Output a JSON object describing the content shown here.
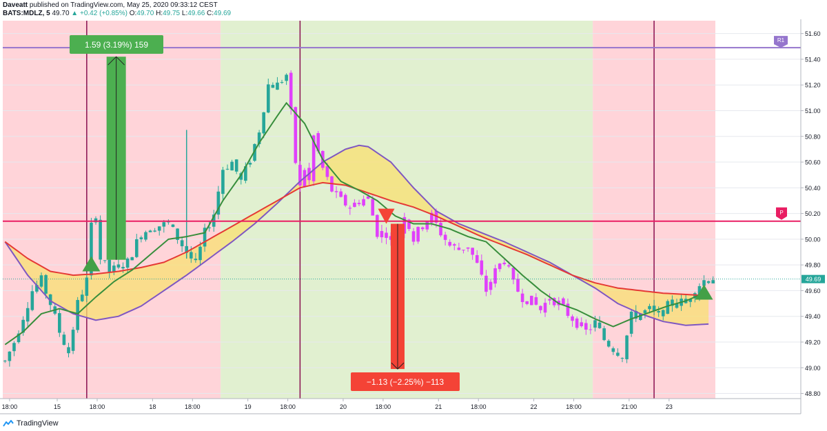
{
  "header": {
    "author": "Daveatt",
    "published": "published on TradingView.com, May 25, 2020 09:33:12 CEST",
    "symbol": "BATS:MDLZ, 5",
    "last": "49.70",
    "change": "+0.42 (+0.85%)",
    "o_label": "O:",
    "o": "49.70",
    "h_label": "H:",
    "h": "49.75",
    "l_label": "L:",
    "l": "49.66",
    "c_label": "C:",
    "c": "49.69",
    "up_arrow": "▲"
  },
  "footer": {
    "brand": "TradingView"
  },
  "colors": {
    "bull": "#26a69a",
    "bear": "#ef5350",
    "magenta": "#e040fb",
    "green_bg": "#dcedc8",
    "red_bg": "#ffcdd2",
    "ma_green": "#388e3c",
    "ma_red": "#e53935",
    "ma_purple": "#7e57c2",
    "fill_yellow": "#f8e071",
    "pivot": "#e91e63",
    "r1": "#9575cd",
    "long_box": "#4caf50",
    "short_box": "#f44336"
  },
  "chart_data": {
    "type": "candlestick",
    "y_ticks": [
      "51.60",
      "51.40",
      "51.20",
      "51.00",
      "50.80",
      "50.60",
      "50.40",
      "50.20",
      "50.00",
      "49.80",
      "49.60",
      "49.40",
      "49.20",
      "49.00",
      "48.80"
    ],
    "ylim": [
      48.76,
      51.7
    ],
    "x_ticks": [
      "18:00",
      "15",
      "18:00",
      "18",
      "18:00",
      "19",
      "18:00",
      "20",
      "18:00",
      "21",
      "18:00",
      "22",
      "18:00",
      "21:00",
      "23"
    ],
    "sessions": [
      {
        "from": 0,
        "to": 48,
        "type": "bear"
      },
      {
        "from": 48,
        "to": 130,
        "type": "bull"
      },
      {
        "from": 130,
        "to": 157,
        "type": "bear"
      }
    ],
    "session_lines": [
      18,
      65,
      143
    ],
    "last_price": 49.69,
    "last_price_label": "49.69",
    "pivot": {
      "label": "P",
      "value": 50.14
    },
    "r1": {
      "label": "R1",
      "value": 51.49
    },
    "long_position": {
      "label": "1.59 (3.19%) 159",
      "from": 49.84,
      "to": 51.42
    },
    "short_position": {
      "label": "−1.13 (−2.25%) −113",
      "from": 50.12,
      "to": 48.99
    },
    "signals": [
      {
        "type": "buy",
        "x": 19,
        "price": 49.75
      },
      {
        "type": "sell",
        "x": 84,
        "price": 50.13
      },
      {
        "type": "buy",
        "x": 154,
        "price": 49.53
      }
    ],
    "ma_fast": [
      [
        0,
        49.18
      ],
      [
        4,
        49.28
      ],
      [
        8,
        49.42
      ],
      [
        12,
        49.46
      ],
      [
        16,
        49.42
      ],
      [
        20,
        49.55
      ],
      [
        24,
        49.67
      ],
      [
        28,
        49.76
      ],
      [
        32,
        49.88
      ],
      [
        36,
        50.0
      ],
      [
        40,
        50.02
      ],
      [
        44,
        50.05
      ],
      [
        48,
        50.3
      ],
      [
        52,
        50.5
      ],
      [
        56,
        50.75
      ],
      [
        60,
        50.96
      ],
      [
        62,
        51.06
      ],
      [
        66,
        50.9
      ],
      [
        70,
        50.62
      ],
      [
        74,
        50.45
      ],
      [
        78,
        50.38
      ],
      [
        82,
        50.3
      ],
      [
        86,
        50.18
      ],
      [
        90,
        50.12
      ],
      [
        94,
        50.12
      ],
      [
        98,
        50.08
      ],
      [
        102,
        50.02
      ],
      [
        106,
        49.98
      ],
      [
        110,
        49.85
      ],
      [
        114,
        49.72
      ],
      [
        118,
        49.6
      ],
      [
        122,
        49.5
      ],
      [
        126,
        49.45
      ],
      [
        130,
        49.38
      ],
      [
        134,
        49.32
      ],
      [
        138,
        49.38
      ],
      [
        142,
        49.43
      ],
      [
        146,
        49.48
      ],
      [
        150,
        49.52
      ],
      [
        154,
        49.58
      ]
    ],
    "ma_mid": [
      [
        0,
        49.98
      ],
      [
        5,
        49.85
      ],
      [
        10,
        49.75
      ],
      [
        15,
        49.72
      ],
      [
        20,
        49.73
      ],
      [
        25,
        49.75
      ],
      [
        30,
        49.78
      ],
      [
        35,
        49.82
      ],
      [
        40,
        49.9
      ],
      [
        45,
        50.0
      ],
      [
        50,
        50.1
      ],
      [
        55,
        50.2
      ],
      [
        60,
        50.3
      ],
      [
        65,
        50.4
      ],
      [
        70,
        50.44
      ],
      [
        75,
        50.42
      ],
      [
        80,
        50.36
      ],
      [
        85,
        50.3
      ],
      [
        90,
        50.25
      ],
      [
        95,
        50.18
      ],
      [
        100,
        50.1
      ],
      [
        105,
        50.02
      ],
      [
        110,
        49.95
      ],
      [
        115,
        49.88
      ],
      [
        120,
        49.8
      ],
      [
        125,
        49.72
      ],
      [
        130,
        49.66
      ],
      [
        135,
        49.62
      ],
      [
        140,
        49.6
      ],
      [
        145,
        49.58
      ],
      [
        150,
        49.57
      ],
      [
        155,
        49.56
      ]
    ],
    "ma_slow": [
      [
        0,
        49.98
      ],
      [
        5,
        49.72
      ],
      [
        10,
        49.52
      ],
      [
        15,
        49.42
      ],
      [
        20,
        49.37
      ],
      [
        25,
        49.4
      ],
      [
        30,
        49.48
      ],
      [
        35,
        49.6
      ],
      [
        40,
        49.72
      ],
      [
        45,
        49.85
      ],
      [
        50,
        49.98
      ],
      [
        55,
        50.12
      ],
      [
        60,
        50.28
      ],
      [
        65,
        50.45
      ],
      [
        70,
        50.6
      ],
      [
        75,
        50.7
      ],
      [
        78,
        50.73
      ],
      [
        80,
        50.72
      ],
      [
        85,
        50.6
      ],
      [
        90,
        50.4
      ],
      [
        95,
        50.22
      ],
      [
        100,
        50.12
      ],
      [
        105,
        50.05
      ],
      [
        110,
        49.98
      ],
      [
        115,
        49.9
      ],
      [
        120,
        49.82
      ],
      [
        125,
        49.72
      ],
      [
        130,
        49.62
      ],
      [
        135,
        49.5
      ],
      [
        140,
        49.42
      ],
      [
        145,
        49.36
      ],
      [
        150,
        49.33
      ],
      [
        155,
        49.34
      ]
    ],
    "price_path": [
      [
        0,
        49.05
      ],
      [
        2,
        49.2
      ],
      [
        4,
        49.4
      ],
      [
        6,
        49.6
      ],
      [
        8,
        49.68
      ],
      [
        10,
        49.5
      ],
      [
        12,
        49.28
      ],
      [
        14,
        49.12
      ],
      [
        16,
        49.5
      ],
      [
        18,
        49.68
      ],
      [
        19,
        50.1
      ],
      [
        20,
        50.2
      ],
      [
        21,
        49.85
      ],
      [
        23,
        49.75
      ],
      [
        25,
        49.78
      ],
      [
        27,
        49.82
      ],
      [
        30,
        50.05
      ],
      [
        33,
        50.1
      ],
      [
        36,
        50.12
      ],
      [
        40,
        49.9
      ],
      [
        42,
        49.8
      ],
      [
        44,
        50.05
      ],
      [
        46,
        50.2
      ],
      [
        48,
        50.55
      ],
      [
        50,
        50.6
      ],
      [
        52,
        50.45
      ],
      [
        54,
        50.62
      ],
      [
        56,
        50.85
      ],
      [
        58,
        51.2
      ],
      [
        60,
        51.2
      ],
      [
        62,
        51.28
      ],
      [
        63,
        50.98
      ],
      [
        64,
        50.6
      ],
      [
        65,
        50.4
      ],
      [
        66,
        50.55
      ],
      [
        67,
        50.45
      ],
      [
        68,
        50.8
      ],
      [
        70,
        50.55
      ],
      [
        72,
        50.38
      ],
      [
        74,
        50.3
      ],
      [
        76,
        50.25
      ],
      [
        78,
        50.3
      ],
      [
        80,
        50.32
      ],
      [
        82,
        50.05
      ],
      [
        84,
        50.05
      ],
      [
        86,
        49.9
      ],
      [
        88,
        50.2
      ],
      [
        90,
        50.0
      ],
      [
        92,
        50.12
      ],
      [
        94,
        50.18
      ],
      [
        96,
        50.05
      ],
      [
        98,
        49.95
      ],
      [
        100,
        49.92
      ],
      [
        102,
        49.95
      ],
      [
        104,
        49.8
      ],
      [
        106,
        49.6
      ],
      [
        108,
        49.75
      ],
      [
        110,
        49.85
      ],
      [
        112,
        49.65
      ],
      [
        114,
        49.55
      ],
      [
        116,
        49.52
      ],
      [
        118,
        49.45
      ],
      [
        120,
        49.55
      ],
      [
        122,
        49.5
      ],
      [
        124,
        49.42
      ],
      [
        126,
        49.35
      ],
      [
        128,
        49.28
      ],
      [
        130,
        49.35
      ],
      [
        132,
        49.22
      ],
      [
        134,
        49.15
      ],
      [
        136,
        49.1
      ],
      [
        138,
        49.4
      ],
      [
        140,
        49.42
      ],
      [
        142,
        49.45
      ],
      [
        144,
        49.4
      ],
      [
        146,
        49.48
      ],
      [
        148,
        49.52
      ],
      [
        150,
        49.5
      ],
      [
        152,
        49.62
      ],
      [
        154,
        49.68
      ],
      [
        156,
        49.7
      ]
    ],
    "candle_count": 157
  }
}
